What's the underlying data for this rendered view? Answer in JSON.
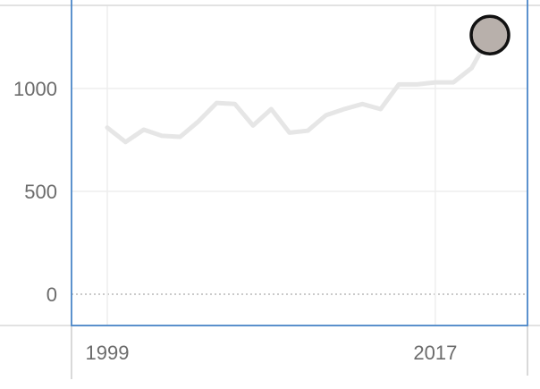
{
  "chart_data": {
    "type": "line",
    "title": "",
    "xlabel": "",
    "ylabel": "",
    "x_tick_labels": [
      "1999",
      "2017"
    ],
    "x_ticks": [
      1999,
      2017
    ],
    "y_tick_labels": [
      "0",
      "500",
      "1000"
    ],
    "y_ticks": [
      0,
      500,
      1000
    ],
    "xlim": [
      1999,
      2020
    ],
    "ylim": [
      0,
      1370
    ],
    "grid": true,
    "zero_line": "dotted",
    "series": [
      {
        "x": [
          1999,
          2000,
          2001,
          2002,
          2003,
          2004,
          2005,
          2006,
          2007,
          2008,
          2009,
          2010,
          2011,
          2012,
          2013,
          2014,
          2015,
          2016,
          2017,
          2018,
          2019,
          2020
        ],
        "y": [
          810,
          740,
          800,
          770,
          765,
          840,
          930,
          925,
          820,
          900,
          785,
          795,
          870,
          900,
          925,
          900,
          1020,
          1020,
          1030,
          1030,
          1100,
          1260
        ],
        "color": "#e6e6e6"
      }
    ],
    "highlight_point": {
      "x": 2020,
      "y": 1260,
      "fill": "#b8b0ab",
      "stroke": "#111111"
    },
    "colors": {
      "frame": "#4a86c8",
      "grid": "#eeeeee",
      "axis_text": "#6b6b6b",
      "zero_line": "#aaaaaa"
    }
  }
}
